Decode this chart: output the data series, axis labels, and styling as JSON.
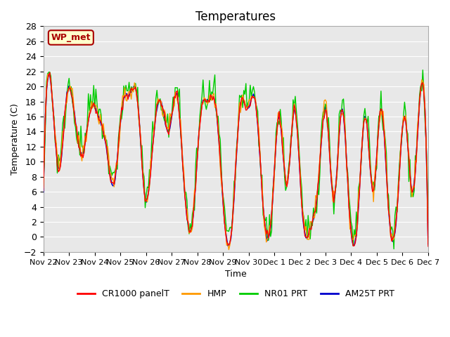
{
  "title": "Temperatures",
  "xlabel": "Time",
  "ylabel": "Temperature (C)",
  "ylim": [
    -2,
    28
  ],
  "yticks": [
    -2,
    0,
    2,
    4,
    6,
    8,
    10,
    12,
    14,
    16,
    18,
    20,
    22,
    24,
    26,
    28
  ],
  "xtick_labels": [
    "Nov 22",
    "Nov 23",
    "Nov 24",
    "Nov 25",
    "Nov 26",
    "Nov 27",
    "Nov 28",
    "Nov 29",
    "Nov 30",
    "Dec 1",
    "Dec 2",
    "Dec 3",
    "Dec 4",
    "Dec 5",
    "Dec 6",
    "Dec 7"
  ],
  "annotation_text": "WP_met",
  "annotation_bg": "#ffffcc",
  "annotation_border": "#aa0000",
  "legend_labels": [
    "CR1000 panelT",
    "HMP",
    "NR01 PRT",
    "AM25T PRT"
  ],
  "legend_colors": [
    "#ff0000",
    "#ff9900",
    "#00cc00",
    "#0000cc"
  ],
  "bg_color": "#e8e8e8",
  "title_fontsize": 12,
  "axis_fontsize": 9,
  "num_points": 360,
  "base_temps": [
    6,
    20,
    9,
    19,
    16,
    11,
    17,
    16,
    12,
    7,
    17,
    19,
    18,
    5,
    13,
    18,
    14,
    19,
    6,
    2,
    16,
    18,
    17,
    3,
    1,
    17,
    17,
    18,
    4,
    2,
    16,
    7,
    17,
    3,
    1,
    7,
    17,
    5,
    17,
    3,
    2,
    16,
    6,
    17,
    3,
    3,
    16,
    6,
    19,
    -1
  ],
  "noise_scale_red": 0.3,
  "noise_scale_orange": 0.6,
  "noise_scale_green": 1.2,
  "noise_scale_blue": 0.1
}
